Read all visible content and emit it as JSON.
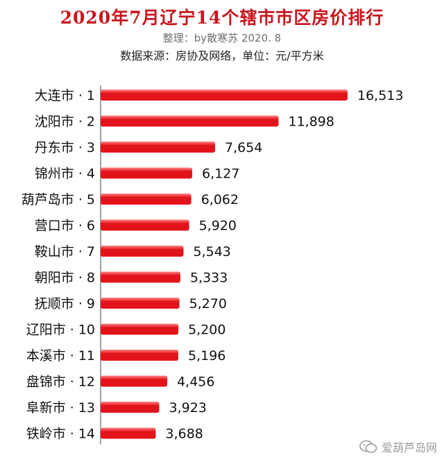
{
  "header": {
    "title": "2020年7月辽宁14个辖市市区房价排行",
    "subtitle": "整理：by散寒苏 2020. 8",
    "source": "数据来源：房协及网络，单位：元/平方米"
  },
  "watermark": {
    "text": "爱葫芦岛网",
    "icon": "wechat-icon"
  },
  "colors": {
    "bar": "#e2141b",
    "bar_highlight": "#ff8a8a",
    "title": "#c8161d"
  },
  "chart_data": {
    "type": "bar",
    "orientation": "horizontal",
    "categories": [
      "大连市 · 1",
      "沈阳市 · 2",
      "丹东市 · 3",
      "锦州市 · 4",
      "葫芦岛市 · 5",
      "营口市 · 6",
      "鞍山市 · 7",
      "朝阳市 · 8",
      "抚顺市 · 9",
      "辽阳市 · 10",
      "本溪市 · 11",
      "盘锦市 · 12",
      "阜新市 · 13",
      "铁岭市 · 14"
    ],
    "values": [
      16513,
      11898,
      7654,
      6127,
      6062,
      5920,
      5543,
      5333,
      5270,
      5200,
      5196,
      4456,
      3923,
      3688
    ],
    "value_labels": [
      "16,513",
      "11,898",
      "7,654",
      "6,127",
      "6,062",
      "5,920",
      "5,543",
      "5,333",
      "5,270",
      "5,200",
      "5,196",
      "4,456",
      "3,923",
      "3,688"
    ],
    "xlim": [
      0,
      16513
    ],
    "grid": false,
    "legend": "none"
  }
}
